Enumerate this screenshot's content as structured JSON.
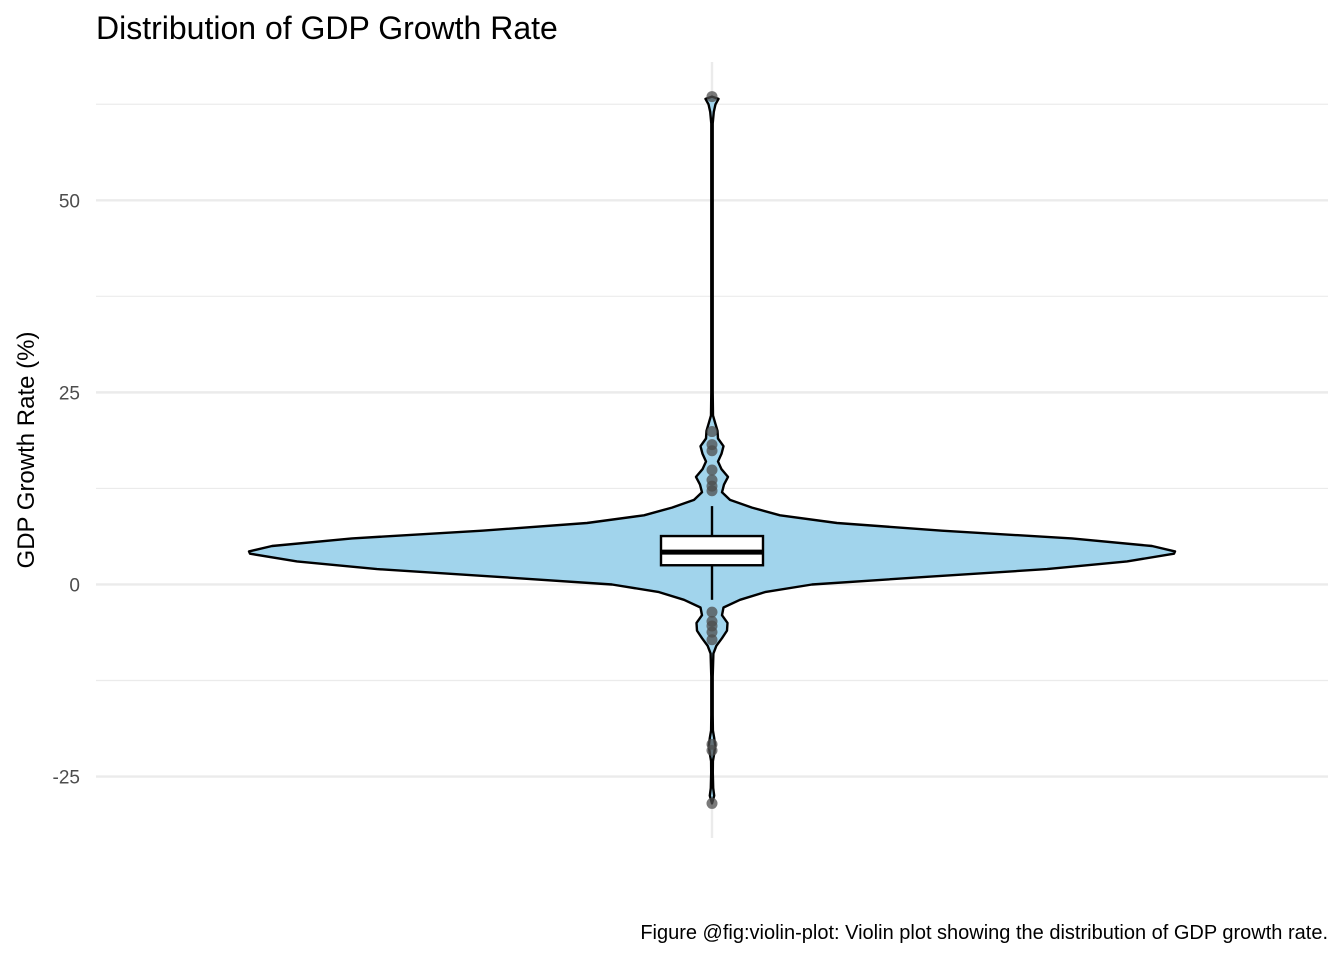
{
  "chart_data": {
    "type": "violin",
    "title": "Distribution of GDP Growth Rate",
    "xlabel": "",
    "ylabel": "GDP Growth Rate (%)",
    "caption": "Figure @fig:violin-plot: Violin plot showing the distribution of GDP growth rate.",
    "ylim": [
      -33,
      68
    ],
    "yticks": [
      -25,
      0,
      25,
      50
    ],
    "grid": true,
    "colors": {
      "violin_fill": "#a1d4ec",
      "outline": "#000000",
      "outlier_points": "#4d4d4d",
      "grid": "#ebebeb"
    },
    "box": {
      "q1": 2.5,
      "median": 4.2,
      "q3": 6.3,
      "whisker_low": -2.0,
      "whisker_high": 10.2
    },
    "range": {
      "min": -28.5,
      "max": 63.5
    },
    "density_profile": [
      {
        "y": -28.5,
        "w": 0.0
      },
      {
        "y": -27.5,
        "w": 2.2
      },
      {
        "y": -26.5,
        "w": 1.2
      },
      {
        "y": -24.5,
        "w": 0.8
      },
      {
        "y": -23.0,
        "w": 0.9
      },
      {
        "y": -22.0,
        "w": 2.2
      },
      {
        "y": -21.0,
        "w": 3.2
      },
      {
        "y": -20.0,
        "w": 2.2
      },
      {
        "y": -19.0,
        "w": 0.9
      },
      {
        "y": -17.0,
        "w": 0.7
      },
      {
        "y": -12.0,
        "w": 0.7
      },
      {
        "y": -9.0,
        "w": 1.4
      },
      {
        "y": -8.0,
        "w": 4.3
      },
      {
        "y": -7.0,
        "w": 10.0
      },
      {
        "y": -6.0,
        "w": 15.0
      },
      {
        "y": -5.0,
        "w": 15.5
      },
      {
        "y": -4.0,
        "w": 10.0
      },
      {
        "y": -3.0,
        "w": 11.5
      },
      {
        "y": -2.0,
        "w": 28.0
      },
      {
        "y": -1.0,
        "w": 53.0
      },
      {
        "y": 0.0,
        "w": 100.0
      },
      {
        "y": 1.0,
        "w": 215.0
      },
      {
        "y": 2.0,
        "w": 335.0
      },
      {
        "y": 3.0,
        "w": 415.0
      },
      {
        "y": 4.0,
        "w": 462.0
      },
      {
        "y": 4.3,
        "w": 463.0
      },
      {
        "y": 5.0,
        "w": 440.0
      },
      {
        "y": 6.0,
        "w": 360.0
      },
      {
        "y": 7.0,
        "w": 230.0
      },
      {
        "y": 8.0,
        "w": 125.0
      },
      {
        "y": 9.0,
        "w": 68.0
      },
      {
        "y": 10.0,
        "w": 40.0
      },
      {
        "y": 11.0,
        "w": 18.0
      },
      {
        "y": 12.0,
        "w": 10.0
      },
      {
        "y": 13.0,
        "w": 12.0
      },
      {
        "y": 14.0,
        "w": 16.0
      },
      {
        "y": 15.0,
        "w": 9.5
      },
      {
        "y": 16.0,
        "w": 6.0
      },
      {
        "y": 17.0,
        "w": 9.5
      },
      {
        "y": 18.0,
        "w": 11.5
      },
      {
        "y": 19.0,
        "w": 6.0
      },
      {
        "y": 20.0,
        "w": 5.5
      },
      {
        "y": 21.0,
        "w": 3.2
      },
      {
        "y": 22.0,
        "w": 1.0
      },
      {
        "y": 25.0,
        "w": 0.7
      },
      {
        "y": 40.0,
        "w": 0.7
      },
      {
        "y": 60.0,
        "w": 0.7
      },
      {
        "y": 61.5,
        "w": 1.8
      },
      {
        "y": 62.5,
        "w": 3.5
      },
      {
        "y": 63.2,
        "w": 6.5
      },
      {
        "y": 63.5,
        "w": 0.0
      }
    ],
    "outliers": [
      -28.5,
      -21.6,
      -20.8,
      -7.2,
      -6.2,
      -5.4,
      -4.8,
      -3.6,
      12.2,
      12.8,
      13.6,
      14.9,
      17.4,
      18.2,
      19.9,
      63.5
    ]
  }
}
